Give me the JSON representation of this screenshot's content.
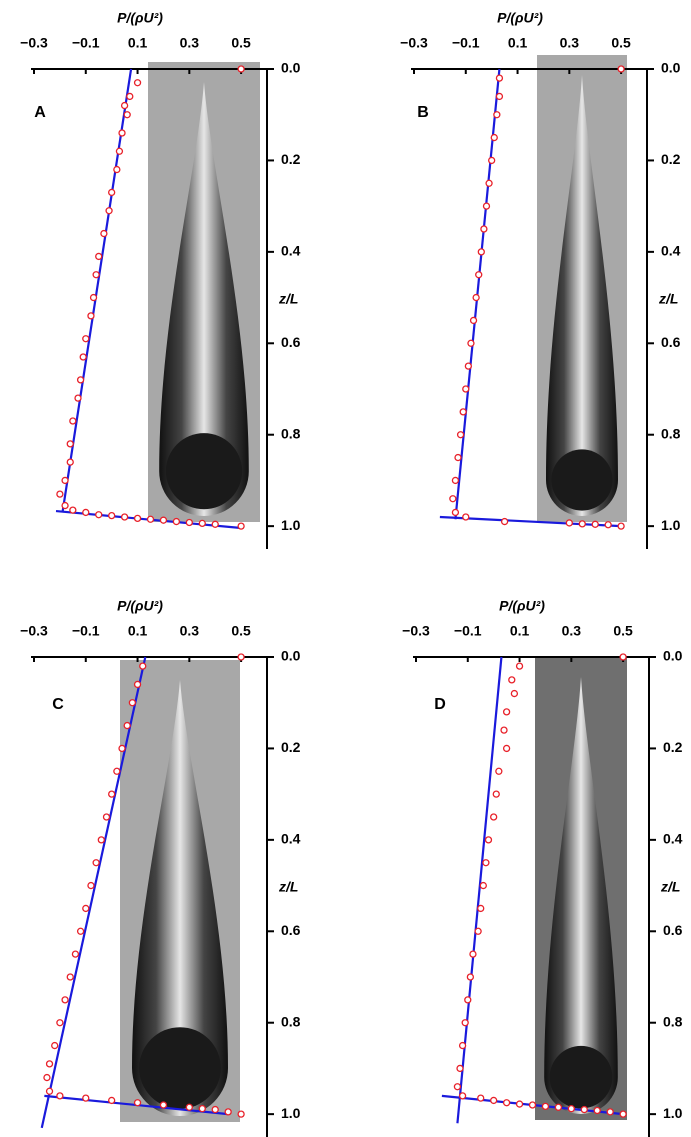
{
  "chart_data": [
    {
      "type": "scatter",
      "panel_label": "A",
      "x_label": "P/(ρU²)",
      "y_label": "z/L",
      "xlim": [
        -0.3,
        0.6
      ],
      "ylim": [
        0,
        1.05
      ],
      "y_reversed": true,
      "xticks": [
        {
          "value": -0.3,
          "label": "−0.3"
        },
        {
          "value": -0.1,
          "label": "−0.1"
        },
        0.1,
        0.3,
        0.5
      ],
      "yticks": [
        {
          "value": 0,
          "label": "0.0"
        },
        0.2,
        0.4,
        0.6,
        0.8,
        {
          "value": 1,
          "label": "1.0"
        }
      ],
      "series": [
        {
          "color": "#e8212a",
          "marker": "open-circle",
          "x": [
            0.5,
            0.1,
            0.07,
            0.05,
            0.06,
            0.04,
            0.03,
            0.02,
            0.0,
            -0.01,
            -0.03,
            -0.05,
            -0.06,
            -0.07,
            -0.08,
            -0.1,
            -0.11,
            -0.12,
            -0.13,
            -0.15,
            -0.16,
            -0.16,
            -0.18,
            -0.2,
            -0.18,
            -0.15,
            -0.1,
            -0.05,
            0.0,
            0.05,
            0.1,
            0.15,
            0.2,
            0.25,
            0.3,
            0.35,
            0.4,
            0.5
          ],
          "values": [
            0.0,
            0.03,
            0.06,
            0.08,
            0.1,
            0.14,
            0.18,
            0.22,
            0.27,
            0.31,
            0.36,
            0.41,
            0.45,
            0.5,
            0.54,
            0.59,
            0.63,
            0.68,
            0.72,
            0.77,
            0.82,
            0.86,
            0.9,
            0.93,
            0.955,
            0.965,
            0.97,
            0.975,
            0.977,
            0.98,
            0.983,
            0.985,
            0.987,
            0.99,
            0.992,
            0.994,
            0.996,
            1.0
          ]
        },
        {
          "color": "#1a1adc",
          "style": "line",
          "x": [
            0.075,
            -0.19
          ],
          "values": [
            0.0,
            0.97
          ]
        },
        {
          "color": "#1a1adc",
          "style": "line",
          "x": [
            -0.215,
            0.5
          ],
          "values": [
            0.967,
            1.004
          ]
        }
      ]
    },
    {
      "type": "scatter",
      "panel_label": "B",
      "x_label": "P/(ρU²)",
      "y_label": "z/L",
      "xlim": [
        -0.3,
        0.6
      ],
      "ylim": [
        0,
        1.05
      ],
      "y_reversed": true,
      "xticks": [
        {
          "value": -0.3,
          "label": "−0.3"
        },
        {
          "value": -0.1,
          "label": "−0.1"
        },
        0.1,
        0.3,
        0.5
      ],
      "yticks": [
        {
          "value": 0,
          "label": "0.0"
        },
        0.2,
        0.4,
        0.6,
        0.8,
        {
          "value": 1,
          "label": "1.0"
        }
      ],
      "series": [
        {
          "color": "#e8212a",
          "marker": "open-circle",
          "x": [
            0.5,
            0.03,
            0.03,
            0.02,
            0.01,
            0.0,
            -0.01,
            -0.02,
            -0.03,
            -0.04,
            -0.05,
            -0.06,
            -0.07,
            -0.08,
            -0.09,
            -0.1,
            -0.11,
            -0.12,
            -0.13,
            -0.14,
            -0.15,
            -0.14,
            -0.1,
            0.05,
            0.3,
            0.35,
            0.4,
            0.45,
            0.5
          ],
          "values": [
            0.0,
            0.02,
            0.06,
            0.1,
            0.15,
            0.2,
            0.25,
            0.3,
            0.35,
            0.4,
            0.45,
            0.5,
            0.55,
            0.6,
            0.65,
            0.7,
            0.75,
            0.8,
            0.85,
            0.9,
            0.94,
            0.97,
            0.98,
            0.99,
            0.993,
            0.995,
            0.996,
            0.997,
            1.0
          ]
        },
        {
          "color": "#1a1adc",
          "style": "line",
          "x": [
            0.03,
            -0.14
          ],
          "values": [
            0.0,
            0.985
          ]
        },
        {
          "color": "#1a1adc",
          "style": "line",
          "x": [
            -0.2,
            0.5
          ],
          "values": [
            0.98,
            1.0
          ]
        }
      ]
    },
    {
      "type": "scatter",
      "panel_label": "C",
      "x_label": "P/(ρU²)",
      "y_label": "z/L",
      "xlim": [
        -0.3,
        0.6
      ],
      "ylim": [
        0,
        1.05
      ],
      "y_reversed": true,
      "xticks": [
        {
          "value": -0.3,
          "label": "−0.3"
        },
        {
          "value": -0.1,
          "label": "−0.1"
        },
        0.1,
        0.3,
        0.5
      ],
      "yticks": [
        {
          "value": 0,
          "label": "0.0"
        },
        0.2,
        0.4,
        0.6,
        0.8,
        {
          "value": 1,
          "label": "1.0"
        }
      ],
      "series": [
        {
          "color": "#e8212a",
          "marker": "open-circle",
          "x": [
            0.5,
            0.12,
            0.1,
            0.08,
            0.06,
            0.04,
            0.02,
            0.0,
            -0.02,
            -0.04,
            -0.06,
            -0.08,
            -0.1,
            -0.12,
            -0.14,
            -0.16,
            -0.18,
            -0.2,
            -0.22,
            -0.24,
            -0.25,
            -0.24,
            -0.2,
            -0.1,
            0.0,
            0.1,
            0.2,
            0.3,
            0.35,
            0.4,
            0.45,
            0.5
          ],
          "values": [
            0.0,
            0.02,
            0.06,
            0.1,
            0.15,
            0.2,
            0.25,
            0.3,
            0.35,
            0.4,
            0.45,
            0.5,
            0.55,
            0.6,
            0.65,
            0.7,
            0.75,
            0.8,
            0.85,
            0.89,
            0.92,
            0.95,
            0.96,
            0.965,
            0.97,
            0.975,
            0.98,
            0.985,
            0.988,
            0.99,
            0.995,
            1.0
          ]
        },
        {
          "color": "#1a1adc",
          "style": "line",
          "x": [
            0.13,
            -0.27
          ],
          "values": [
            0.0,
            1.03
          ]
        },
        {
          "color": "#1a1adc",
          "style": "line",
          "x": [
            -0.26,
            0.45
          ],
          "values": [
            0.96,
            1.0
          ]
        }
      ]
    },
    {
      "type": "scatter",
      "panel_label": "D",
      "x_label": "P/(ρU²)",
      "y_label": "z/L",
      "xlim": [
        -0.3,
        0.6
      ],
      "ylim": [
        0,
        1.05
      ],
      "y_reversed": true,
      "xticks": [
        {
          "value": -0.3,
          "label": "−0.3"
        },
        {
          "value": -0.1,
          "label": "−0.1"
        },
        0.1,
        0.3,
        0.5
      ],
      "yticks": [
        {
          "value": 0,
          "label": "0.0"
        },
        0.2,
        0.4,
        0.6,
        0.8,
        {
          "value": 1,
          "label": "1.0"
        }
      ],
      "series": [
        {
          "color": "#e8212a",
          "marker": "open-circle",
          "x": [
            0.5,
            0.1,
            0.07,
            0.08,
            0.05,
            0.04,
            0.05,
            0.02,
            0.01,
            0.0,
            -0.02,
            -0.03,
            -0.04,
            -0.05,
            -0.06,
            -0.08,
            -0.09,
            -0.1,
            -0.11,
            -0.12,
            -0.13,
            -0.14,
            -0.12,
            -0.05,
            0.0,
            0.05,
            0.1,
            0.15,
            0.2,
            0.25,
            0.3,
            0.35,
            0.4,
            0.45,
            0.5
          ],
          "values": [
            0.0,
            0.02,
            0.05,
            0.08,
            0.12,
            0.16,
            0.2,
            0.25,
            0.3,
            0.35,
            0.4,
            0.45,
            0.5,
            0.55,
            0.6,
            0.65,
            0.7,
            0.75,
            0.8,
            0.85,
            0.9,
            0.94,
            0.96,
            0.965,
            0.97,
            0.975,
            0.978,
            0.98,
            0.983,
            0.985,
            0.988,
            0.99,
            0.992,
            0.995,
            1.0
          ]
        },
        {
          "color": "#1a1adc",
          "style": "line",
          "x": [
            0.03,
            -0.14
          ],
          "values": [
            0.0,
            1.02
          ]
        },
        {
          "color": "#1a1adc",
          "style": "line",
          "x": [
            -0.2,
            0.5
          ],
          "values": [
            0.96,
            1.0
          ]
        }
      ]
    }
  ]
}
